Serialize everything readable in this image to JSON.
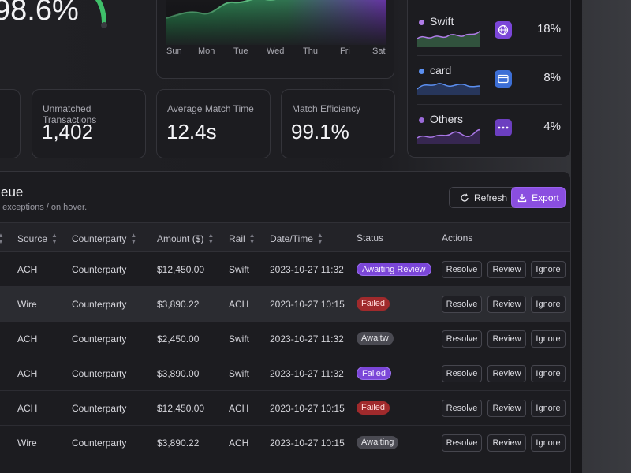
{
  "top": {
    "big_stat": "98.6%"
  },
  "chart": {
    "days": [
      "Sun",
      "Mon",
      "Tue",
      "Wed",
      "Thu",
      "Fri",
      "Sat"
    ]
  },
  "sources": [
    {
      "name": "Swift",
      "pct": "18%",
      "dot": "#b07de8",
      "icon": "globe-icon",
      "icon_bg": "#7b46d8"
    },
    {
      "name": "card",
      "pct": "8%",
      "dot": "#5b8ff0",
      "icon": "card-icon",
      "icon_bg": "#3d6fd6"
    },
    {
      "name": "Others",
      "pct": "4%",
      "dot": "#9a6ad8",
      "icon": "more-icon",
      "icon_bg": "#6c3fc0"
    }
  ],
  "stats": [
    {
      "label": "Unmatched Transactions",
      "value": "1,402"
    },
    {
      "label": "Average Match Time",
      "value": "12.4s"
    },
    {
      "label": "Match Efficiency",
      "value": "99.1%"
    }
  ],
  "queue": {
    "title": "eue",
    "subtitle": ", exceptions / on hover.",
    "refresh_label": "Refresh",
    "export_label": "Export",
    "columns": {
      "source": "Source",
      "counterparty": "Counterparty",
      "amount": "Amount ($)",
      "rail": "Rail",
      "datetime": "Date/Time",
      "status": "Status",
      "actions": "Actions"
    },
    "action_labels": {
      "resolve": "Resolve",
      "review": "Review",
      "ignore": "Ignore"
    },
    "rows": [
      {
        "source": "ACH",
        "counterparty": "Counterparty",
        "amount": "$12,450.00",
        "rail": "Swift",
        "datetime": "2023-10-27 11:32",
        "status": "Awaiting Review",
        "status_kind": "purple"
      },
      {
        "source": "Wire",
        "counterparty": "Counterparty",
        "amount": "$3,890.22",
        "rail": "ACH",
        "datetime": "2023-10-27 10:15",
        "status": "Failed",
        "status_kind": "red"
      },
      {
        "source": "ACH",
        "counterparty": "Counterparty",
        "amount": "$2,450.00",
        "rail": "Swift",
        "datetime": "2023-10-27 11:32",
        "status": "Awaitw",
        "status_kind": "gray"
      },
      {
        "source": "ACH",
        "counterparty": "Counterparty",
        "amount": "$3,890.00",
        "rail": "Swift",
        "datetime": "2023-10-27 11:32",
        "status": "Failed",
        "status_kind": "purple"
      },
      {
        "source": "ACH",
        "counterparty": "Counterparty",
        "amount": "$12,450.00",
        "rail": "ACH",
        "datetime": "2023-10-27 10:15",
        "status": "Failed",
        "status_kind": "red"
      },
      {
        "source": "Wire",
        "counterparty": "Counterparty",
        "amount": "$3,890.22",
        "rail": "ACH",
        "datetime": "2023-10-27 10:15",
        "status": "Awaiting",
        "status_kind": "gray"
      }
    ]
  }
}
